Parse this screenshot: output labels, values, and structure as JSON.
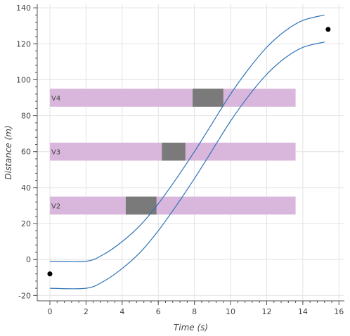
{
  "chart_data": {
    "type": "line",
    "xlabel": "Time (s)",
    "ylabel": "Distance (m)",
    "xlim": [
      -0.7,
      16.3
    ],
    "ylim": [
      -23,
      142
    ],
    "x_ticks": [
      0,
      2,
      4,
      6,
      8,
      10,
      12,
      14,
      16
    ],
    "y_ticks": [
      -20,
      0,
      20,
      40,
      60,
      80,
      100,
      120,
      140
    ],
    "grid": true,
    "colors": {
      "curve": "#2f74b4",
      "band": "#d9b6dc",
      "block": "#7a7a7a",
      "point": "#000000",
      "grid": "#e3e3e3",
      "axis": "#555555"
    },
    "series": [
      {
        "x": [
          0,
          2,
          3,
          4,
          5,
          6,
          7,
          8,
          9,
          10,
          11,
          12,
          13,
          14,
          15.2
        ],
        "y": [
          -1,
          -1,
          3,
          10,
          19,
          31,
          45,
          60,
          76,
          92,
          106,
          118,
          127,
          133,
          136
        ]
      },
      {
        "x": [
          0,
          2,
          3,
          4,
          5,
          6,
          7,
          8,
          9,
          10,
          11,
          12,
          13,
          14,
          15.2
        ],
        "y": [
          -16,
          -16,
          -12,
          -5,
          4,
          16,
          30,
          45,
          61,
          77,
          91,
          103,
          112,
          118,
          121
        ]
      }
    ],
    "bands": [
      {
        "label": "V2",
        "x_range": [
          0,
          13.6
        ],
        "y_range": [
          25,
          35
        ],
        "block_x_range": [
          4.2,
          5.9
        ]
      },
      {
        "label": "V3",
        "x_range": [
          0,
          13.6
        ],
        "y_range": [
          55,
          65
        ],
        "block_x_range": [
          6.2,
          7.5
        ]
      },
      {
        "label": "V4",
        "x_range": [
          0,
          13.6
        ],
        "y_range": [
          85,
          95
        ],
        "block_x_range": [
          7.9,
          9.6
        ]
      }
    ],
    "points": [
      {
        "x": 0,
        "y": -8
      },
      {
        "x": 15.4,
        "y": 128
      }
    ]
  }
}
